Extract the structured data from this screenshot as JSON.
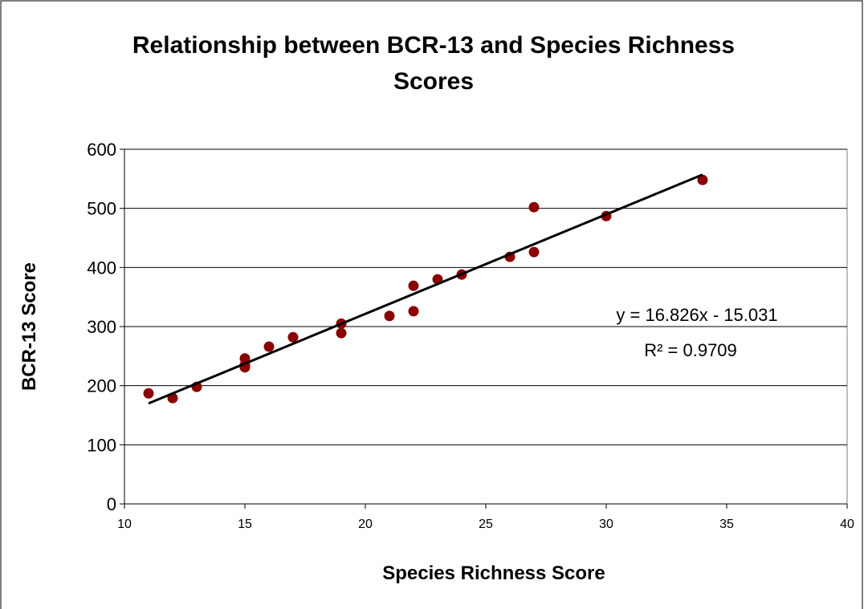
{
  "chart_data": {
    "type": "scatter",
    "title": "Relationship between BCR-13 and Species Richness Scores",
    "x_label": "Species Richness Score",
    "y_label": "BCR-13 Score",
    "series": [
      {
        "name": "BCR-13",
        "color": "#8b0000",
        "x": [
          11,
          12,
          13,
          15,
          15,
          15,
          16,
          17,
          19,
          19,
          21,
          22,
          22,
          23,
          24,
          26,
          27,
          27,
          30,
          34
        ],
        "values": [
          187,
          179,
          198,
          246,
          235,
          231,
          266,
          282,
          305,
          289,
          318,
          369,
          326,
          380,
          388,
          418,
          502,
          426,
          487,
          548
        ]
      }
    ],
    "trendline": {
      "slope": 16.826,
      "intercept": -15.031,
      "color": "#000000"
    },
    "annotations": [
      "y = 16.826x - 15.031",
      "R² = 0.9709"
    ],
    "xlim": [
      10,
      40
    ],
    "xticks": [
      10,
      15,
      20,
      25,
      30,
      35,
      40
    ],
    "ylim": [
      0,
      600
    ],
    "yticks": [
      0,
      100,
      200,
      300,
      400,
      500,
      600
    ],
    "grid": true
  }
}
